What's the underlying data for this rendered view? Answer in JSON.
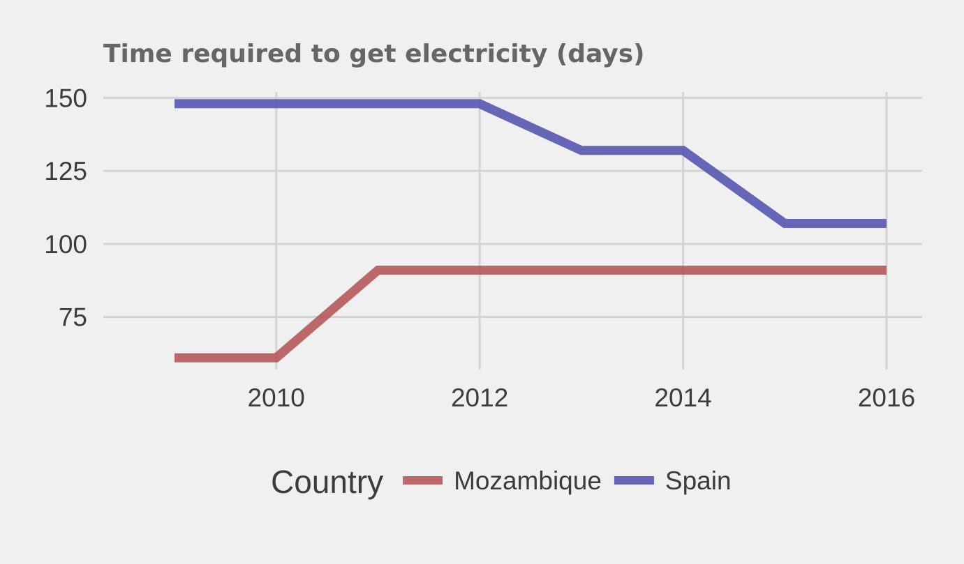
{
  "chart_data": {
    "type": "line",
    "title": "Time required to get electricity (days)",
    "xlabel": "",
    "ylabel": "",
    "x": [
      2009,
      2010,
      2011,
      2012,
      2013,
      2014,
      2015,
      2016
    ],
    "xlim": [
      2008.3,
      2016.35
    ],
    "ylim": [
      57,
      152
    ],
    "x_ticks": [
      2010,
      2012,
      2014,
      2016
    ],
    "y_ticks": [
      75,
      100,
      125,
      150
    ],
    "grid": true,
    "legend": {
      "title": "Country",
      "position": "bottom"
    },
    "series": [
      {
        "name": "Mozambique",
        "color": "#b45454",
        "values": [
          61,
          61,
          91,
          91,
          91,
          91,
          91,
          91
        ]
      },
      {
        "name": "Spain",
        "color": "#5252b0",
        "values": [
          148,
          148,
          148,
          148,
          132,
          132,
          107,
          107
        ]
      }
    ]
  }
}
